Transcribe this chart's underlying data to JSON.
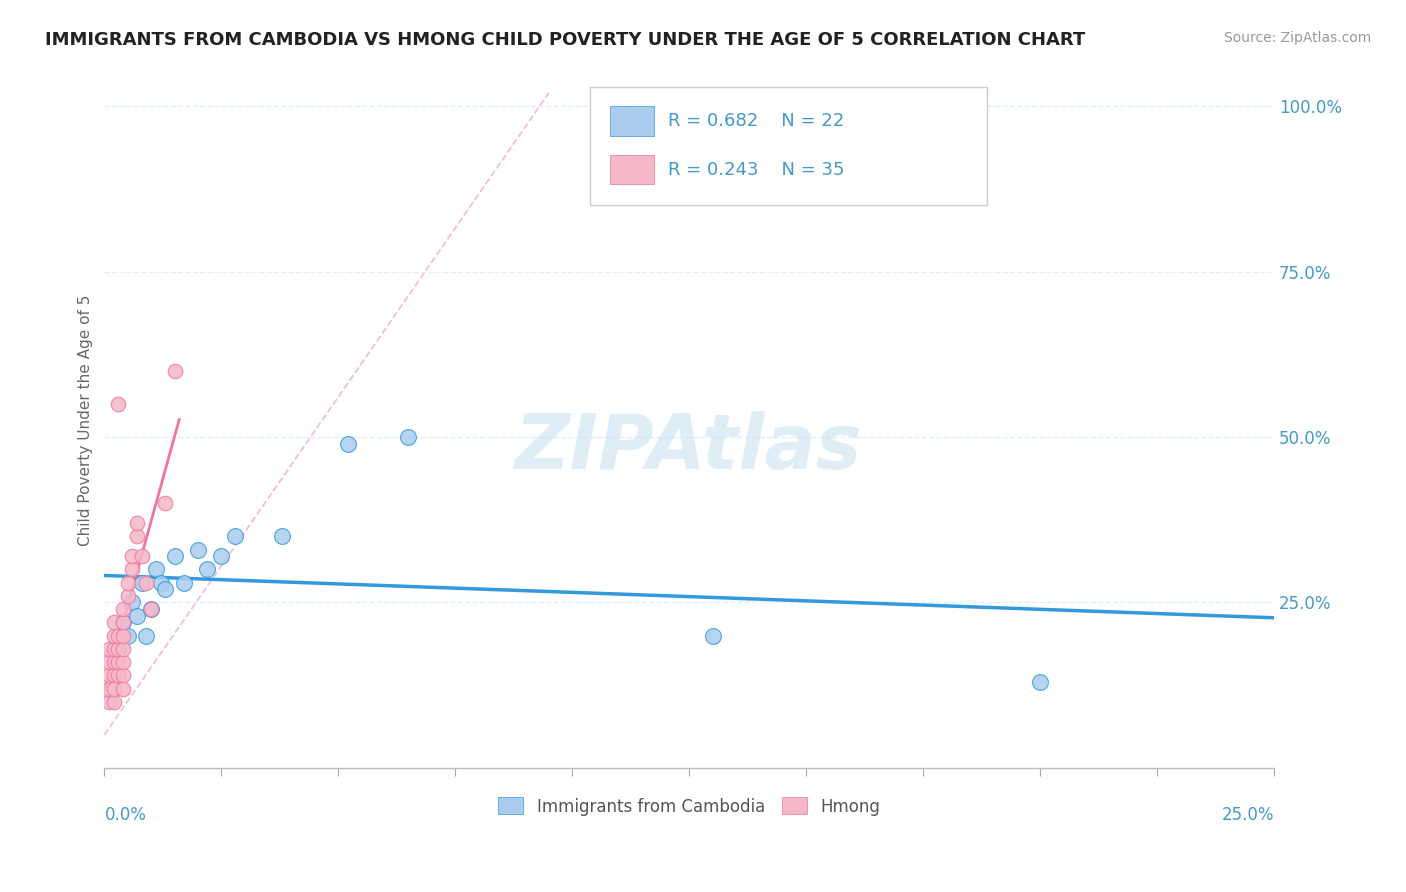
{
  "title": "IMMIGRANTS FROM CAMBODIA VS HMONG CHILD POVERTY UNDER THE AGE OF 5 CORRELATION CHART",
  "source": "Source: ZipAtlas.com",
  "ylabel": "Child Poverty Under the Age of 5",
  "xlim": [
    0.0,
    0.25
  ],
  "ylim": [
    0.0,
    1.05
  ],
  "yticks": [
    0.25,
    0.5,
    0.75,
    1.0
  ],
  "ytick_labels": [
    "25.0%",
    "50.0%",
    "75.0%",
    "100.0%"
  ],
  "watermark": "ZIPAtlas",
  "legend_r_cambodia": "R = 0.682",
  "legend_n_cambodia": "N = 22",
  "legend_r_hmong": "R = 0.243",
  "legend_n_hmong": "N = 35",
  "legend_label_cambodia": "Immigrants from Cambodia",
  "legend_label_hmong": "Hmong",
  "cambodia_color": "#aaccee",
  "hmong_color": "#f5b8c8",
  "trendline_cambodia_color": "#3399dd",
  "trendline_hmong_color": "#ee7799",
  "diagonal_color": "#f0b0c0",
  "tick_color": "#4499cc",
  "grid_color": "#ddeeff",
  "background_color": "#ffffff",
  "title_color": "#222222",
  "cambodia_x": [
    0.003,
    0.004,
    0.005,
    0.006,
    0.007,
    0.008,
    0.009,
    0.01,
    0.011,
    0.012,
    0.013,
    0.015,
    0.017,
    0.02,
    0.022,
    0.025,
    0.028,
    0.038,
    0.052,
    0.065,
    0.13,
    0.2
  ],
  "cambodia_y": [
    0.18,
    0.22,
    0.2,
    0.25,
    0.23,
    0.28,
    0.2,
    0.24,
    0.3,
    0.28,
    0.27,
    0.32,
    0.28,
    0.33,
    0.3,
    0.32,
    0.35,
    0.35,
    0.49,
    0.5,
    0.2,
    0.13
  ],
  "hmong_x": [
    0.001,
    0.001,
    0.001,
    0.001,
    0.001,
    0.002,
    0.002,
    0.002,
    0.002,
    0.002,
    0.002,
    0.002,
    0.003,
    0.003,
    0.003,
    0.003,
    0.003,
    0.004,
    0.004,
    0.004,
    0.004,
    0.004,
    0.004,
    0.004,
    0.005,
    0.005,
    0.006,
    0.006,
    0.007,
    0.007,
    0.008,
    0.009,
    0.01,
    0.013,
    0.015
  ],
  "hmong_y": [
    0.1,
    0.12,
    0.14,
    0.16,
    0.18,
    0.1,
    0.12,
    0.14,
    0.16,
    0.18,
    0.2,
    0.22,
    0.14,
    0.16,
    0.18,
    0.2,
    0.55,
    0.12,
    0.14,
    0.16,
    0.18,
    0.2,
    0.22,
    0.24,
    0.26,
    0.28,
    0.3,
    0.32,
    0.35,
    0.37,
    0.32,
    0.28,
    0.24,
    0.4,
    0.6
  ]
}
